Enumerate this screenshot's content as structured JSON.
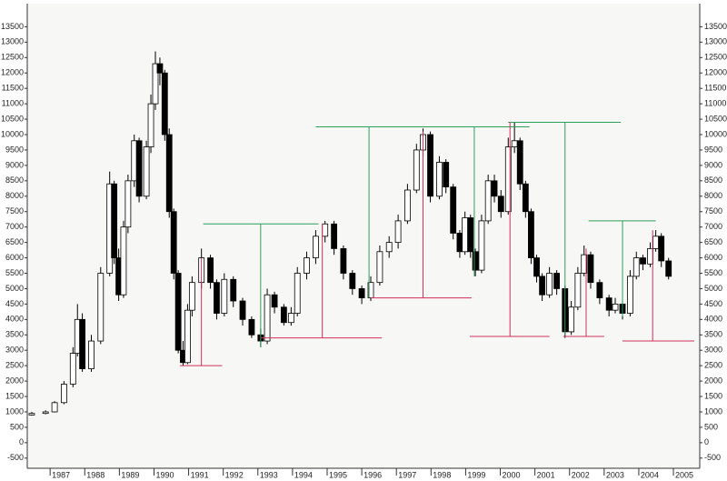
{
  "chart_data": {
    "type": "candlestick",
    "xlim": [
      1986.34,
      2005.76
    ],
    "ylim": [
      -830,
      14250
    ],
    "xticks": [
      1987,
      1988,
      1989,
      1990,
      1991,
      1992,
      1993,
      1994,
      1995,
      1996,
      1997,
      1998,
      1999,
      2000,
      2001,
      2002,
      2003,
      2004,
      2005
    ],
    "yticks": [
      -500,
      0,
      500,
      1000,
      1500,
      2000,
      2500,
      3000,
      3500,
      4000,
      4500,
      5000,
      5500,
      6000,
      6500,
      7000,
      7500,
      8000,
      8500,
      9000,
      9500,
      10000,
      10500,
      11000,
      11500,
      12000,
      12500,
      13000,
      13500
    ],
    "up_color": "#ffffff",
    "down_color": "#000000",
    "edge_color": "#000000",
    "x": [
      1986.47,
      1986.87,
      1987.13,
      1987.4,
      1987.66,
      1987.79,
      1987.93,
      1988.19,
      1988.46,
      1988.72,
      1988.85,
      1988.98,
      1989.12,
      1989.25,
      1989.43,
      1989.57,
      1989.78,
      1989.91,
      1990.04,
      1990.17,
      1990.31,
      1990.44,
      1990.57,
      1990.7,
      1990.84,
      1990.97,
      1991.1,
      1991.37,
      1991.63,
      1991.81,
      1992.03,
      1992.29,
      1992.56,
      1992.82,
      1993.08,
      1993.27,
      1993.48,
      1993.75,
      1993.96,
      1994.14,
      1994.41,
      1994.67,
      1994.94,
      1995.2,
      1995.47,
      1995.73,
      1996.0,
      1996.26,
      1996.52,
      1996.79,
      1997.05,
      1997.32,
      1997.58,
      1997.77,
      1997.98,
      1998.24,
      1998.43,
      1998.64,
      1998.83,
      1998.98,
      1999.14,
      1999.28,
      1999.46,
      1999.65,
      1999.83,
      2000.02,
      2000.23,
      2000.41,
      2000.57,
      2000.73,
      2000.89,
      2001.05,
      2001.21,
      2001.42,
      2001.63,
      2001.87,
      2002.05,
      2002.24,
      2002.42,
      2002.61,
      2002.87,
      2003.14,
      2003.32,
      2003.53,
      2003.75,
      2003.93,
      2004.12,
      2004.33,
      2004.49,
      2004.65,
      2004.86
    ],
    "open": [
      900,
      950,
      1000,
      1300,
      1900,
      2900,
      4000,
      2400,
      3300,
      5500,
      8400,
      6000,
      4800,
      7000,
      8500,
      9800,
      8000,
      9600,
      11000,
      12300,
      12000,
      10000,
      7500,
      5500,
      3000,
      2600,
      4300,
      5200,
      6000,
      5200,
      4200,
      5300,
      4600,
      4000,
      3500,
      3300,
      4800,
      4400,
      3900,
      4200,
      5500,
      6000,
      6700,
      7100,
      6300,
      5500,
      5000,
      4700,
      5200,
      6200,
      6500,
      7200,
      8200,
      9500,
      10000,
      8000,
      9100,
      8300,
      6800,
      6200,
      7300,
      6200,
      5600,
      7200,
      8500,
      8000,
      7500,
      9600,
      9800,
      8400,
      7500,
      6000,
      5400,
      4800,
      5500,
      5000,
      3600,
      4400,
      5500,
      6100,
      5200,
      4700,
      4300,
      4500,
      4200,
      5400,
      6000,
      5800,
      6300,
      6700,
      5900
    ],
    "high": [
      1000,
      1050,
      1350,
      2000,
      3100,
      4500,
      4200,
      3500,
      5700,
      8800,
      8500,
      6300,
      7200,
      8700,
      10000,
      9900,
      9800,
      11300,
      12700,
      12500,
      12100,
      10200,
      7600,
      5600,
      3300,
      4500,
      5400,
      6300,
      6100,
      5300,
      5500,
      5400,
      4700,
      4100,
      3700,
      5000,
      4900,
      4500,
      4400,
      5700,
      6200,
      6900,
      7200,
      7200,
      6400,
      5600,
      5100,
      5400,
      6400,
      6700,
      7400,
      8400,
      9700,
      10200,
      10100,
      9300,
      9200,
      8400,
      6900,
      7500,
      7400,
      6300,
      7400,
      8700,
      8700,
      8200,
      9900,
      10400,
      9900,
      8500,
      7600,
      6100,
      5500,
      5700,
      5600,
      5100,
      4600,
      5700,
      6400,
      6200,
      5300,
      4800,
      4700,
      4600,
      5600,
      6200,
      6100,
      6500,
      6900,
      6800,
      6000
    ],
    "low": [
      880,
      920,
      980,
      1250,
      1800,
      2800,
      2300,
      2300,
      3200,
      5400,
      5800,
      4600,
      4700,
      6800,
      8300,
      7800,
      7900,
      9400,
      10800,
      11600,
      9800,
      7300,
      5300,
      2900,
      2500,
      2550,
      4100,
      5000,
      5000,
      4000,
      4100,
      4400,
      3800,
      3400,
      3100,
      3200,
      4200,
      3800,
      3800,
      4100,
      5300,
      5800,
      6500,
      6100,
      5300,
      4800,
      4500,
      4600,
      5100,
      6000,
      6300,
      7100,
      8100,
      9300,
      7800,
      7900,
      8100,
      6600,
      6000,
      6100,
      6000,
      5400,
      5500,
      7100,
      7800,
      7300,
      7400,
      9400,
      8200,
      7300,
      5800,
      5200,
      4600,
      4700,
      4800,
      3400,
      3500,
      4300,
      5400,
      5000,
      4500,
      4100,
      4200,
      4000,
      4100,
      5300,
      5600,
      5700,
      6200,
      5700,
      5300
    ],
    "close": [
      950,
      1000,
      1300,
      1900,
      2900,
      4000,
      2400,
      3300,
      5500,
      8400,
      6000,
      4800,
      7000,
      8500,
      9800,
      8000,
      9600,
      11000,
      12300,
      12000,
      10000,
      7500,
      5500,
      3000,
      2600,
      4300,
      5200,
      6000,
      5200,
      4200,
      5300,
      4600,
      4000,
      3500,
      3300,
      4800,
      4400,
      3900,
      4200,
      5500,
      6000,
      6700,
      7100,
      6300,
      5500,
      5000,
      4700,
      5200,
      6200,
      6500,
      7200,
      8200,
      9500,
      10000,
      8000,
      9100,
      8300,
      6800,
      6200,
      7300,
      6200,
      5600,
      7200,
      8500,
      8000,
      7500,
      9600,
      9800,
      8400,
      7500,
      6000,
      5400,
      4800,
      5500,
      5000,
      3600,
      4400,
      5500,
      6100,
      5200,
      4700,
      4300,
      4500,
      4200,
      5400,
      6000,
      5800,
      6300,
      6700,
      5900,
      5400
    ],
    "lines": [
      {
        "color": "#2e9e5b",
        "x": [
          1991.42,
          1994.75
        ],
        "y": [
          7100,
          7100
        ]
      },
      {
        "color": "#2e9e5b",
        "x": [
          1993.08,
          1993.08
        ],
        "y": [
          7100,
          3100
        ]
      },
      {
        "color": "#d0305a",
        "x": [
          1991.37,
          1991.37
        ],
        "y": [
          6000,
          2500
        ]
      },
      {
        "color": "#d0305a",
        "x": [
          1990.75,
          1991.97
        ],
        "y": [
          2500,
          2500
        ]
      },
      {
        "color": "#d0305a",
        "x": [
          1993.08,
          1996.58
        ],
        "y": [
          3400,
          3400
        ]
      },
      {
        "color": "#d0305a",
        "x": [
          1994.86,
          1994.86
        ],
        "y": [
          7100,
          3400
        ]
      },
      {
        "color": "#2e9e5b",
        "x": [
          1994.67,
          2000.84
        ],
        "y": [
          10250,
          10250
        ]
      },
      {
        "color": "#2e9e5b",
        "x": [
          1996.21,
          1996.21
        ],
        "y": [
          10250,
          4700
        ]
      },
      {
        "color": "#2e9e5b",
        "x": [
          1999.25,
          1999.25
        ],
        "y": [
          10250,
          5400
        ]
      },
      {
        "color": "#d0305a",
        "x": [
          1996.26,
          1999.17
        ],
        "y": [
          4700,
          4700
        ]
      },
      {
        "color": "#d0305a",
        "x": [
          1997.77,
          1997.77
        ],
        "y": [
          10100,
          4700
        ]
      },
      {
        "color": "#2e9e5b",
        "x": [
          2000.23,
          2003.48
        ],
        "y": [
          10400,
          10400
        ]
      },
      {
        "color": "#2e9e5b",
        "x": [
          2001.87,
          2001.87
        ],
        "y": [
          10400,
          3500
        ]
      },
      {
        "color": "#d0305a",
        "x": [
          1999.12,
          2001.42
        ],
        "y": [
          3450,
          3450
        ]
      },
      {
        "color": "#d0305a",
        "x": [
          2000.28,
          2000.28
        ],
        "y": [
          10400,
          3450
        ]
      },
      {
        "color": "#d0305a",
        "x": [
          2001.82,
          2003.0
        ],
        "y": [
          3450,
          3450
        ]
      },
      {
        "color": "#d0305a",
        "x": [
          2002.48,
          2002.48
        ],
        "y": [
          6300,
          3450
        ]
      },
      {
        "color": "#2e9e5b",
        "x": [
          2002.55,
          2004.49
        ],
        "y": [
          7200,
          7200
        ]
      },
      {
        "color": "#2e9e5b",
        "x": [
          2003.53,
          2003.53
        ],
        "y": [
          7200,
          4100
        ]
      },
      {
        "color": "#d0305a",
        "x": [
          2003.53,
          2005.6
        ],
        "y": [
          3300,
          3300
        ]
      },
      {
        "color": "#d0305a",
        "x": [
          2004.4,
          2004.4
        ],
        "y": [
          6900,
          3300
        ]
      }
    ]
  }
}
